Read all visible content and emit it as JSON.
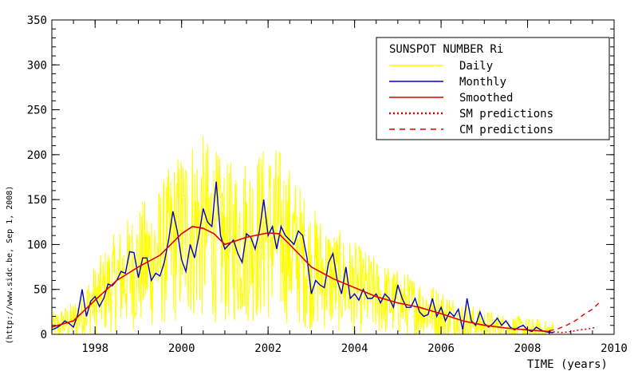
{
  "chart_data": {
    "type": "line",
    "title": "",
    "xlabel": "TIME (years)",
    "ylabel": "",
    "credit": "(http://www.sidc.be, Sep  1, 2008)",
    "xlim": [
      1997,
      2010
    ],
    "ylim": [
      0,
      350
    ],
    "x_ticks": [
      1998,
      2000,
      2002,
      2004,
      2006,
      2008,
      2010
    ],
    "y_ticks": [
      0,
      50,
      100,
      150,
      200,
      250,
      300,
      350
    ],
    "grid": false,
    "legend": {
      "title": "SUNSPOT NUMBER Ri",
      "placement": "top-right",
      "entries": [
        {
          "label": "Daily",
          "style": "solid",
          "color": "#ffff00"
        },
        {
          "label": "Monthly",
          "style": "solid",
          "color": "#0000c8"
        },
        {
          "label": "Smoothed",
          "style": "solid",
          "color": "#e00000"
        },
        {
          "label": "SM predictions",
          "style": "dotted",
          "color": "#e00000"
        },
        {
          "label": "CM predictions",
          "style": "dashed",
          "color": "#e00000"
        }
      ]
    },
    "series": [
      {
        "name": "Monthly",
        "color": "#0000c8",
        "x": [
          1997.0,
          1997.1,
          1997.2,
          1997.3,
          1997.4,
          1997.5,
          1997.6,
          1997.7,
          1997.8,
          1997.9,
          1998.0,
          1998.1,
          1998.2,
          1998.3,
          1998.4,
          1998.5,
          1998.6,
          1998.7,
          1998.8,
          1998.9,
          1999.0,
          1999.1,
          1999.2,
          1999.3,
          1999.4,
          1999.5,
          1999.6,
          1999.7,
          1999.8,
          1999.9,
          2000.0,
          2000.1,
          2000.2,
          2000.3,
          2000.4,
          2000.5,
          2000.6,
          2000.7,
          2000.8,
          2000.9,
          2001.0,
          2001.1,
          2001.2,
          2001.3,
          2001.4,
          2001.5,
          2001.6,
          2001.7,
          2001.8,
          2001.9,
          2002.0,
          2002.1,
          2002.2,
          2002.3,
          2002.4,
          2002.5,
          2002.6,
          2002.7,
          2002.8,
          2002.9,
          2003.0,
          2003.1,
          2003.2,
          2003.3,
          2003.4,
          2003.5,
          2003.6,
          2003.7,
          2003.8,
          2003.9,
          2004.0,
          2004.1,
          2004.2,
          2004.3,
          2004.4,
          2004.5,
          2004.6,
          2004.7,
          2004.8,
          2004.9,
          2005.0,
          2005.1,
          2005.2,
          2005.3,
          2005.4,
          2005.5,
          2005.6,
          2005.7,
          2005.8,
          2005.9,
          2006.0,
          2006.1,
          2006.2,
          2006.3,
          2006.4,
          2006.5,
          2006.6,
          2006.7,
          2006.8,
          2006.9,
          2007.0,
          2007.1,
          2007.2,
          2007.3,
          2007.4,
          2007.5,
          2007.6,
          2007.7,
          2007.8,
          2007.9,
          2008.0,
          2008.1,
          2008.2,
          2008.3,
          2008.4,
          2008.5,
          2008.6
        ],
        "values": [
          5,
          7,
          10,
          15,
          12,
          8,
          22,
          50,
          20,
          37,
          42,
          31,
          40,
          56,
          54,
          60,
          70,
          68,
          92,
          91,
          63,
          85,
          85,
          60,
          68,
          65,
          80,
          105,
          137,
          115,
          83,
          70,
          100,
          85,
          110,
          140,
          125,
          120,
          170,
          110,
          95,
          100,
          105,
          90,
          80,
          112,
          108,
          95,
          115,
          150,
          110,
          120,
          95,
          120,
          110,
          105,
          100,
          115,
          110,
          85,
          45,
          60,
          55,
          52,
          80,
          90,
          60,
          45,
          75,
          40,
          45,
          38,
          50,
          40,
          40,
          45,
          35,
          45,
          40,
          30,
          55,
          40,
          30,
          30,
          40,
          25,
          20,
          22,
          40,
          20,
          30,
          15,
          25,
          20,
          28,
          5,
          40,
          15,
          10,
          25,
          12,
          8,
          12,
          18,
          10,
          15,
          8,
          5,
          8,
          10,
          5,
          3,
          8,
          5,
          3,
          2,
          2
        ]
      },
      {
        "name": "Smoothed",
        "color": "#e00000",
        "x": [
          1997.0,
          1997.5,
          1998.0,
          1998.5,
          1999.0,
          1999.5,
          2000.0,
          2000.25,
          2000.5,
          2000.75,
          2001.0,
          2001.5,
          2002.0,
          2002.25,
          2002.5,
          2003.0,
          2003.5,
          2004.0,
          2004.5,
          2005.0,
          2005.5,
          2006.0,
          2006.5,
          2007.0,
          2007.5,
          2008.0,
          2008.5
        ],
        "values": [
          8,
          15,
          38,
          60,
          75,
          88,
          112,
          120,
          118,
          112,
          100,
          108,
          113,
          112,
          100,
          75,
          62,
          52,
          42,
          35,
          30,
          23,
          15,
          10,
          7,
          5,
          3
        ]
      },
      {
        "name": "SM predictions",
        "color": "#e00000",
        "x": [
          2008.5,
          2008.8,
          2009.0,
          2009.2,
          2009.4,
          2009.6
        ],
        "values": [
          3,
          2,
          3,
          5,
          6,
          8
        ]
      },
      {
        "name": "CM predictions",
        "color": "#e00000",
        "x": [
          2008.5,
          2008.7,
          2008.9,
          2009.1,
          2009.3,
          2009.5,
          2009.65
        ],
        "values": [
          4,
          6,
          10,
          15,
          22,
          28,
          35
        ]
      }
    ]
  }
}
